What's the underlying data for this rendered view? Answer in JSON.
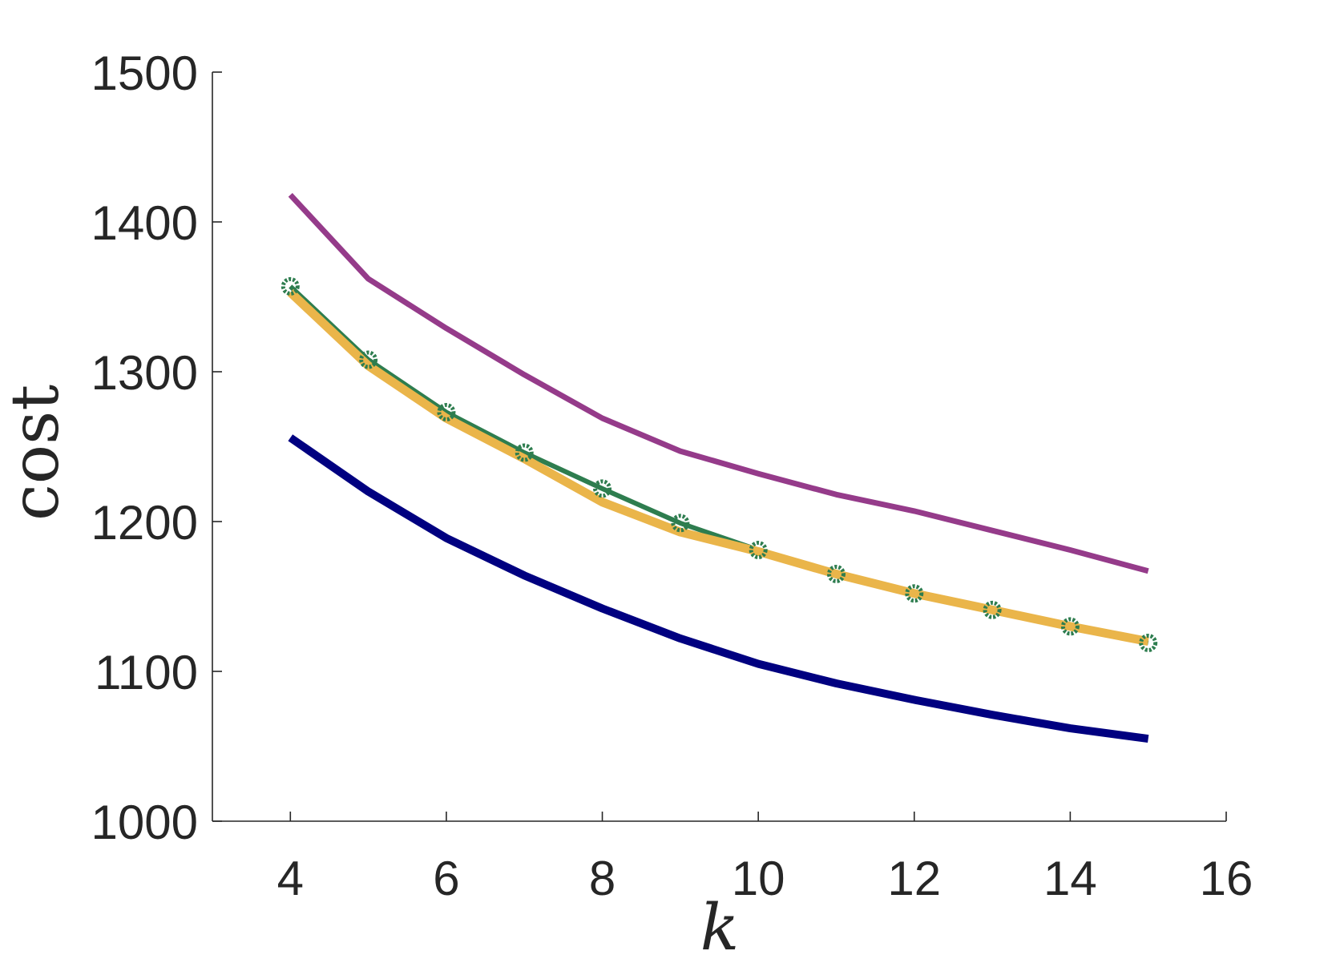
{
  "chart_data": {
    "type": "line",
    "title": "",
    "xlabel": "k",
    "ylabel": "cost",
    "xlim": [
      3,
      16
    ],
    "ylim": [
      1000,
      1500
    ],
    "xticks": [
      4,
      6,
      8,
      10,
      12,
      14,
      16
    ],
    "yticks": [
      1000,
      1100,
      1200,
      1300,
      1400,
      1500
    ],
    "grid": false,
    "legend": "none",
    "x": [
      4,
      5,
      6,
      7,
      8,
      9,
      10,
      11,
      12,
      13,
      14,
      15
    ],
    "series": [
      {
        "color": "#953B8A",
        "marker": "none",
        "values": [
          1418,
          1362,
          1329,
          1298,
          1269,
          1247,
          1232,
          1218,
          1207,
          1194,
          1181,
          1167
        ]
      },
      {
        "color": "#2E7D4F",
        "marker": "circle",
        "values": [
          1357,
          1308,
          1273,
          1246,
          1222,
          1199,
          1181,
          1165,
          1152,
          1141,
          1130,
          1119
        ]
      },
      {
        "color": "#EAB54A",
        "marker": "none",
        "values": [
          1353,
          1304,
          1269,
          1242,
          1213,
          1193,
          1180,
          1165,
          1152,
          1141,
          1130,
          1120
        ]
      },
      {
        "color": "#000080",
        "marker": "none",
        "values": [
          1256,
          1220,
          1189,
          1164,
          1142,
          1122,
          1105,
          1092,
          1081,
          1071,
          1062,
          1055
        ]
      }
    ]
  }
}
